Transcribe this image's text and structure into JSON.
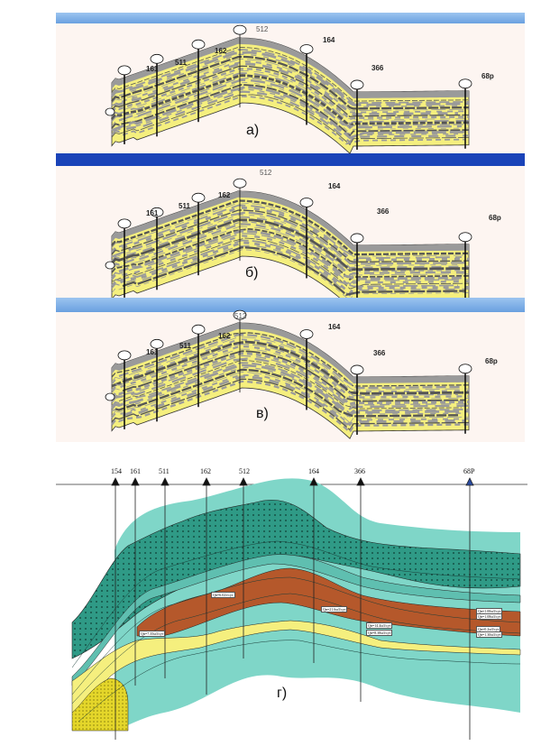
{
  "wells": [
    "161",
    "511",
    "162",
    "512",
    "164",
    "366",
    "68p"
  ],
  "panels": [
    {
      "letter": "а)"
    },
    {
      "letter": "б)"
    },
    {
      "letter": "в)"
    }
  ],
  "panel_g": {
    "letter": "г)",
    "wells": [
      "154",
      "161",
      "511",
      "162",
      "512",
      "164",
      "366",
      "68P"
    ],
    "tags": [
      "Qн=6.02т/сут",
      "Qн=7.35м3/сут",
      "Qн=21.6м3/сут",
      "Qн=14.4м3/сут",
      "Qн=8.38м3/сут",
      "Qн=1.00м3/сут",
      "Qн=0.2м3/сут",
      "Qн=1.30м3/сут",
      "Qн=1.08м3/сут"
    ]
  },
  "colors": {
    "sandstone": "#f5ef7e",
    "shale": "#9a9a9a",
    "teal": "#7fd6c8",
    "brown": "#b5582b"
  }
}
